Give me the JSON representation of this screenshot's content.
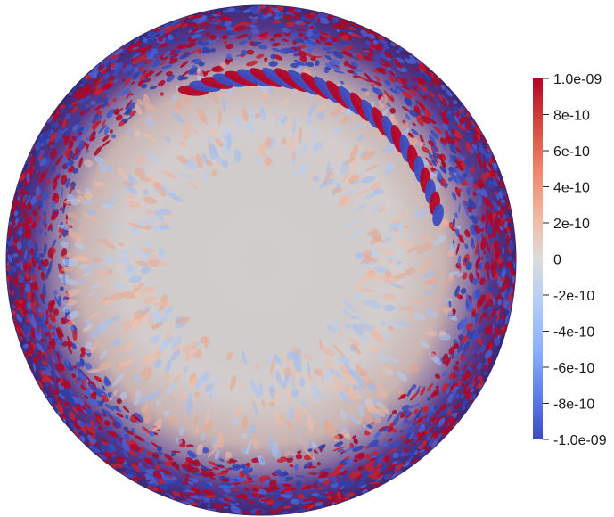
{
  "colorbar": {
    "colors": {
      "max": "#b40426",
      "mid": "#dddcdc",
      "min": "#3b4cc0"
    },
    "ticks": [
      {
        "value": 1e-09,
        "label": "1.0e-09"
      },
      {
        "value": 8e-10,
        "label": "8e-10"
      },
      {
        "value": 6e-10,
        "label": "6e-10"
      },
      {
        "value": 4e-10,
        "label": "4e-10"
      },
      {
        "value": 2e-10,
        "label": "2e-10"
      },
      {
        "value": 0,
        "label": "0"
      },
      {
        "value": -2e-10,
        "label": "-2e-10"
      },
      {
        "value": -4e-10,
        "label": "-4e-10"
      },
      {
        "value": -6e-10,
        "label": "-6e-10"
      },
      {
        "value": -8e-10,
        "label": "-8e-10"
      },
      {
        "value": -1e-09,
        "label": "-1.0e-09"
      }
    ]
  }
}
